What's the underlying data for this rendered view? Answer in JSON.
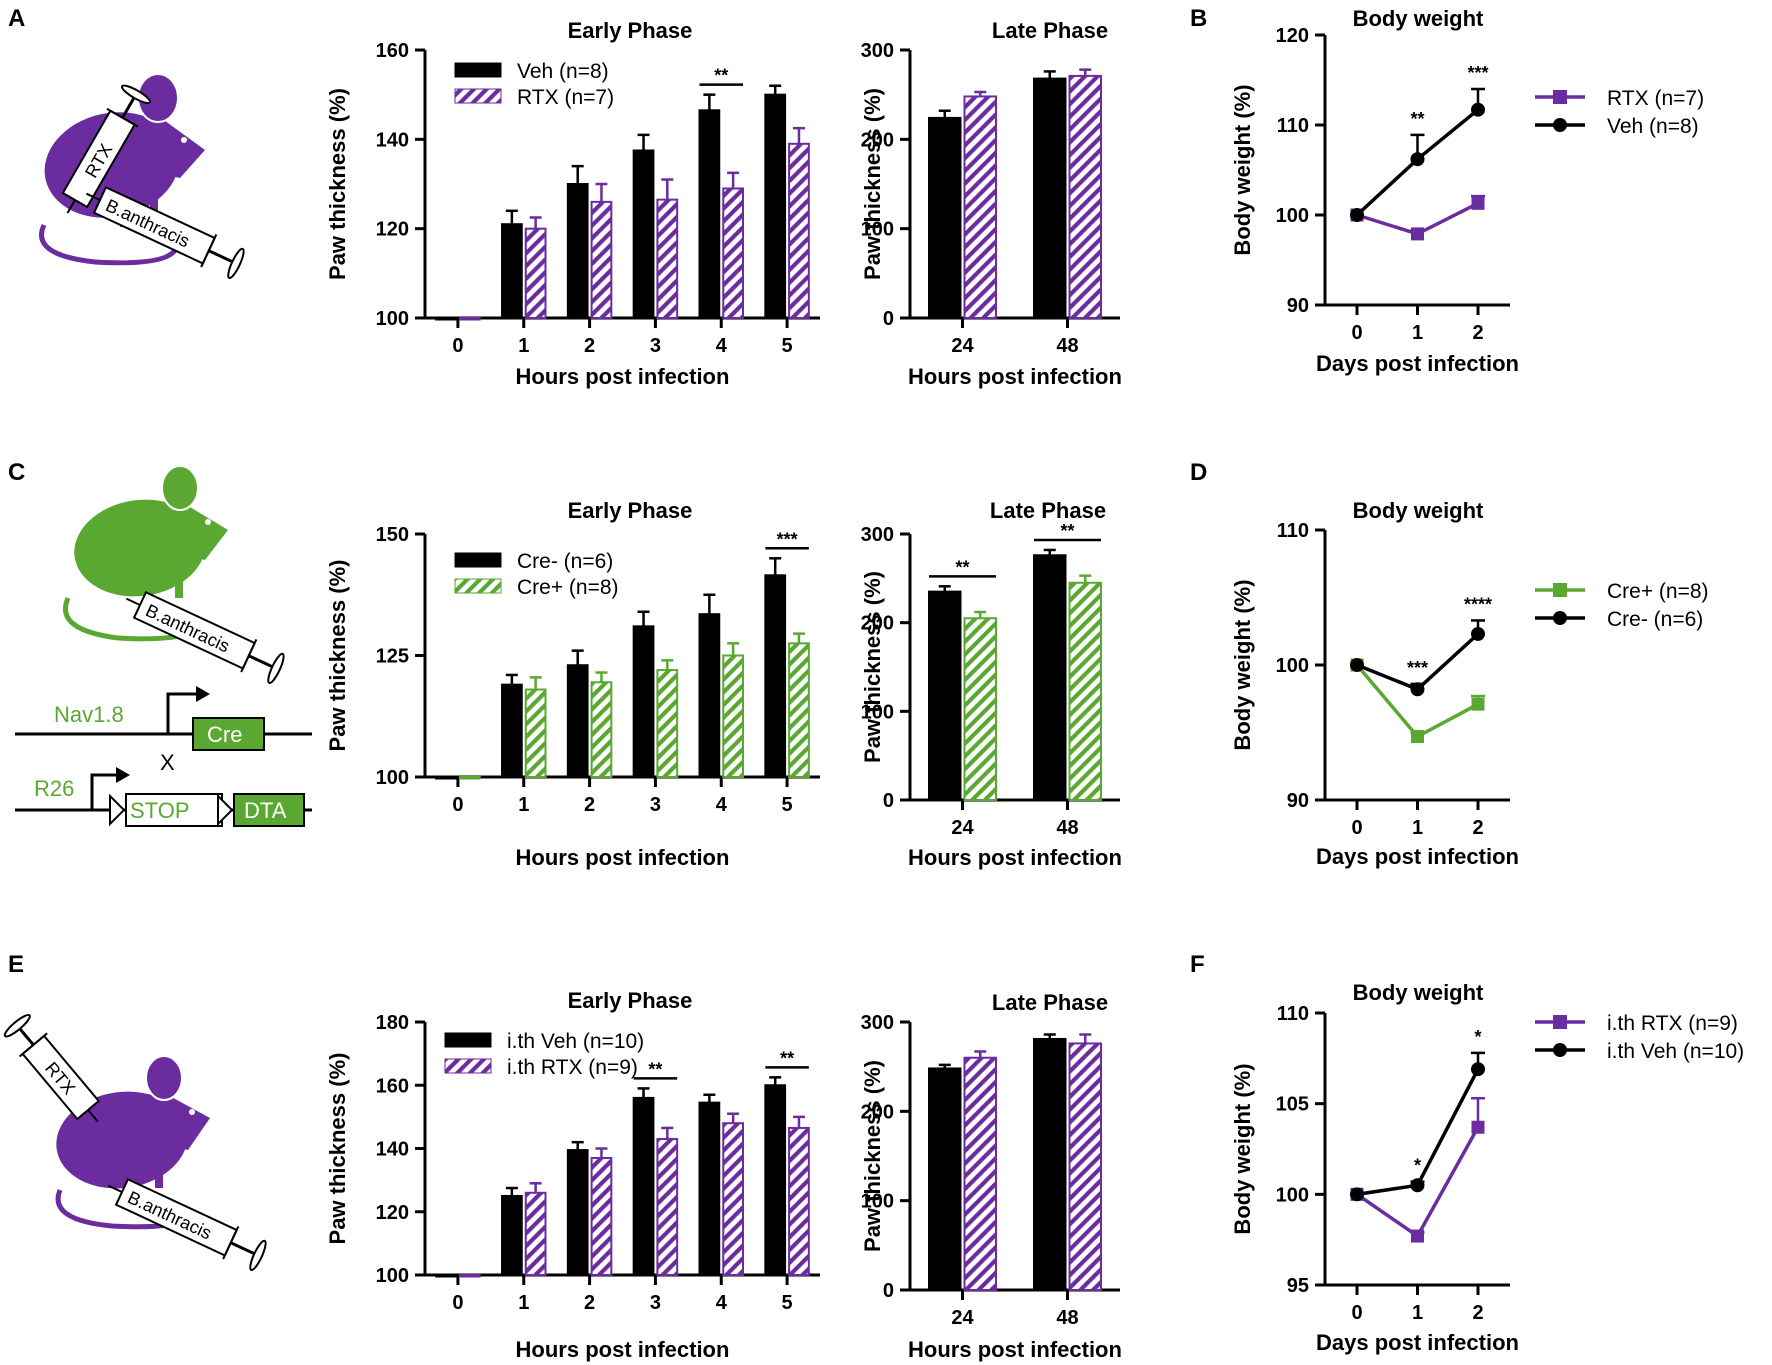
{
  "colors": {
    "black": "#000000",
    "purple": "#6a2c9f",
    "green": "#5aa832"
  },
  "figure": {
    "panel_labels": [
      "A",
      "B",
      "C",
      "D",
      "E",
      "F"
    ],
    "illustrations": {
      "A": {
        "syringe1": "RTX",
        "syringe2": "B.anthracis"
      },
      "C": {
        "syringe": "B.anthracis",
        "gene1_label": "Nav1.8",
        "gene1_box": "Cre",
        "cross": "X",
        "gene2_label": "R26",
        "gene2_stop": "STOP",
        "gene2_box": "DTA"
      },
      "E": {
        "syringe1": "RTX",
        "syringe2": "B.anthracis"
      }
    }
  },
  "chart_data": [
    {
      "id": "A-early",
      "type": "bar",
      "title": "Early Phase",
      "xlabel": "Hours post infection",
      "ylabel": "Paw thickness (%)",
      "categories": [
        "0",
        "1",
        "2",
        "3",
        "4",
        "5"
      ],
      "ylim": [
        100,
        160
      ],
      "yticks": [
        100,
        120,
        140,
        160
      ],
      "series": [
        {
          "name": "Veh (n=8)",
          "style": "solid",
          "color": "#000000",
          "values": [
            100,
            121,
            130,
            137.5,
            146.5,
            150
          ],
          "errors": [
            0,
            3,
            4,
            3.5,
            3.5,
            2
          ]
        },
        {
          "name": "RTX (n=7)",
          "style": "hatch",
          "color": "#6a2c9f",
          "values": [
            100,
            120,
            126,
            126.5,
            129,
            139
          ],
          "errors": [
            0,
            2.5,
            4,
            4.5,
            3.5,
            3.5
          ]
        }
      ],
      "significance": [
        {
          "category": "4",
          "label": "**"
        }
      ]
    },
    {
      "id": "A-late",
      "type": "bar",
      "title": "Late Phase",
      "xlabel": "Hours post infection",
      "ylabel": "Paw thickness (%)",
      "categories": [
        "24",
        "48"
      ],
      "ylim": [
        0,
        300
      ],
      "yticks": [
        0,
        100,
        200,
        300
      ],
      "series": [
        {
          "name": "Veh (n=8)",
          "style": "solid",
          "color": "#000000",
          "values": [
            224,
            268
          ],
          "errors": [
            8,
            8
          ]
        },
        {
          "name": "RTX (n=7)",
          "style": "hatch",
          "color": "#6a2c9f",
          "values": [
            248,
            271
          ],
          "errors": [
            5,
            7
          ]
        }
      ],
      "significance": []
    },
    {
      "id": "B",
      "type": "line",
      "title": "Body weight",
      "xlabel": "Days post infection",
      "ylabel": "Body weight (%)",
      "x": [
        0,
        1,
        2
      ],
      "ylim": [
        90,
        120
      ],
      "yticks": [
        90,
        100,
        110,
        120
      ],
      "series": [
        {
          "name": "RTX (n=7)",
          "marker": "square",
          "color": "#6a2c9f",
          "values": [
            100,
            97.9,
            101.3
          ],
          "errors": [
            0,
            0.4,
            0.8
          ]
        },
        {
          "name": "Veh (n=8)",
          "marker": "circle",
          "color": "#000000",
          "values": [
            100,
            106.2,
            111.7
          ],
          "errors": [
            0,
            2.7,
            2.3
          ]
        }
      ],
      "significance": [
        {
          "x": 1,
          "label": "**"
        },
        {
          "x": 2,
          "label": "***"
        }
      ]
    },
    {
      "id": "C-early",
      "type": "bar",
      "title": "Early Phase",
      "xlabel": "Hours post infection",
      "ylabel": "Paw thickness (%)",
      "categories": [
        "0",
        "1",
        "2",
        "3",
        "4",
        "5"
      ],
      "ylim": [
        100,
        150
      ],
      "yticks": [
        100,
        125,
        150
      ],
      "series": [
        {
          "name": "Cre- (n=6)",
          "style": "solid",
          "color": "#000000",
          "values": [
            100,
            119,
            123,
            131,
            133.5,
            141.5
          ],
          "errors": [
            0,
            2,
            3,
            3,
            4,
            3.5
          ]
        },
        {
          "name": "Cre+ (n=8)",
          "style": "hatch",
          "color": "#5aa832",
          "values": [
            100,
            118,
            119.5,
            122,
            125,
            127.5
          ],
          "errors": [
            0,
            2.5,
            2,
            2,
            2.5,
            2
          ]
        }
      ],
      "significance": [
        {
          "category": "5",
          "label": "***"
        }
      ]
    },
    {
      "id": "C-late",
      "type": "bar",
      "title": "Late Phase",
      "xlabel": "Hours post infection",
      "ylabel": "Paw thickness (%)",
      "categories": [
        "24",
        "48"
      ],
      "ylim": [
        0,
        300
      ],
      "yticks": [
        0,
        100,
        200,
        300
      ],
      "series": [
        {
          "name": "Cre- (n=6)",
          "style": "solid",
          "color": "#000000",
          "values": [
            235,
            276
          ],
          "errors": [
            6,
            6
          ]
        },
        {
          "name": "Cre+ (n=8)",
          "style": "hatch",
          "color": "#5aa832",
          "values": [
            205,
            245
          ],
          "errors": [
            7,
            8
          ]
        }
      ],
      "significance": [
        {
          "category": "24",
          "label": "**"
        },
        {
          "category": "48",
          "label": "**"
        }
      ]
    },
    {
      "id": "D",
      "type": "line",
      "title": "Body weight",
      "xlabel": "Days post infection",
      "ylabel": "Body weight (%)",
      "x": [
        0,
        1,
        2
      ],
      "ylim": [
        90,
        110
      ],
      "yticks": [
        90,
        100,
        110
      ],
      "series": [
        {
          "name": "Cre+ (n=8)",
          "marker": "square",
          "color": "#5aa832",
          "values": [
            100,
            94.7,
            97.1
          ],
          "errors": [
            0,
            0.3,
            0.6
          ]
        },
        {
          "name": "Cre- (n=6)",
          "marker": "circle",
          "color": "#000000",
          "values": [
            100,
            98.2,
            102.3
          ],
          "errors": [
            0,
            0.4,
            1.0
          ]
        }
      ],
      "significance": [
        {
          "x": 1,
          "label": "***"
        },
        {
          "x": 2,
          "label": "****"
        }
      ]
    },
    {
      "id": "E-early",
      "type": "bar",
      "title": "Early Phase",
      "xlabel": "Hours post infection",
      "ylabel": "Paw thickness (%)",
      "categories": [
        "0",
        "1",
        "2",
        "3",
        "4",
        "5"
      ],
      "ylim": [
        100,
        180
      ],
      "yticks": [
        100,
        120,
        140,
        160,
        180
      ],
      "series": [
        {
          "name": "i.th Veh (n=10)",
          "style": "solid",
          "color": "#000000",
          "values": [
            100,
            125,
            139.5,
            156,
            154.5,
            160
          ],
          "errors": [
            0,
            2.5,
            2.5,
            3,
            2.5,
            2.5
          ]
        },
        {
          "name": "i.th RTX (n=9)",
          "style": "hatch",
          "color": "#6a2c9f",
          "values": [
            100,
            126,
            137,
            143,
            148,
            146.5
          ],
          "errors": [
            0,
            3,
            3,
            3.5,
            3,
            3.5
          ]
        }
      ],
      "significance": [
        {
          "category": "3",
          "label": "**"
        },
        {
          "category": "5",
          "label": "**"
        }
      ]
    },
    {
      "id": "E-late",
      "type": "bar",
      "title": "Late Phase",
      "xlabel": "Hours post infection",
      "ylabel": "Paw thickness (%)",
      "categories": [
        "24",
        "48"
      ],
      "ylim": [
        0,
        300
      ],
      "yticks": [
        0,
        100,
        200,
        300
      ],
      "series": [
        {
          "name": "i.th Veh (n=10)",
          "style": "solid",
          "color": "#000000",
          "values": [
            248,
            281
          ],
          "errors": [
            4,
            5
          ]
        },
        {
          "name": "i.th RTX (n=9)",
          "style": "hatch",
          "color": "#6a2c9f",
          "values": [
            260,
            276
          ],
          "errors": [
            7,
            10
          ]
        }
      ],
      "significance": []
    },
    {
      "id": "F",
      "type": "line",
      "title": "Body weight",
      "xlabel": "Days post infection",
      "ylabel": "Body weight (%)",
      "x": [
        0,
        1,
        2
      ],
      "ylim": [
        95,
        110
      ],
      "yticks": [
        95,
        100,
        105,
        110
      ],
      "series": [
        {
          "name": "i.th RTX (n=9)",
          "marker": "square",
          "color": "#6a2c9f",
          "values": [
            100,
            97.7,
            103.7
          ],
          "errors": [
            0,
            0.2,
            1.6
          ]
        },
        {
          "name": "i.th Veh (n=10)",
          "marker": "circle",
          "color": "#000000",
          "values": [
            100,
            100.5,
            106.9
          ],
          "errors": [
            0,
            0.2,
            0.9
          ]
        }
      ],
      "significance": [
        {
          "x": 1,
          "label": "*"
        },
        {
          "x": 2,
          "label": "*"
        }
      ]
    }
  ]
}
